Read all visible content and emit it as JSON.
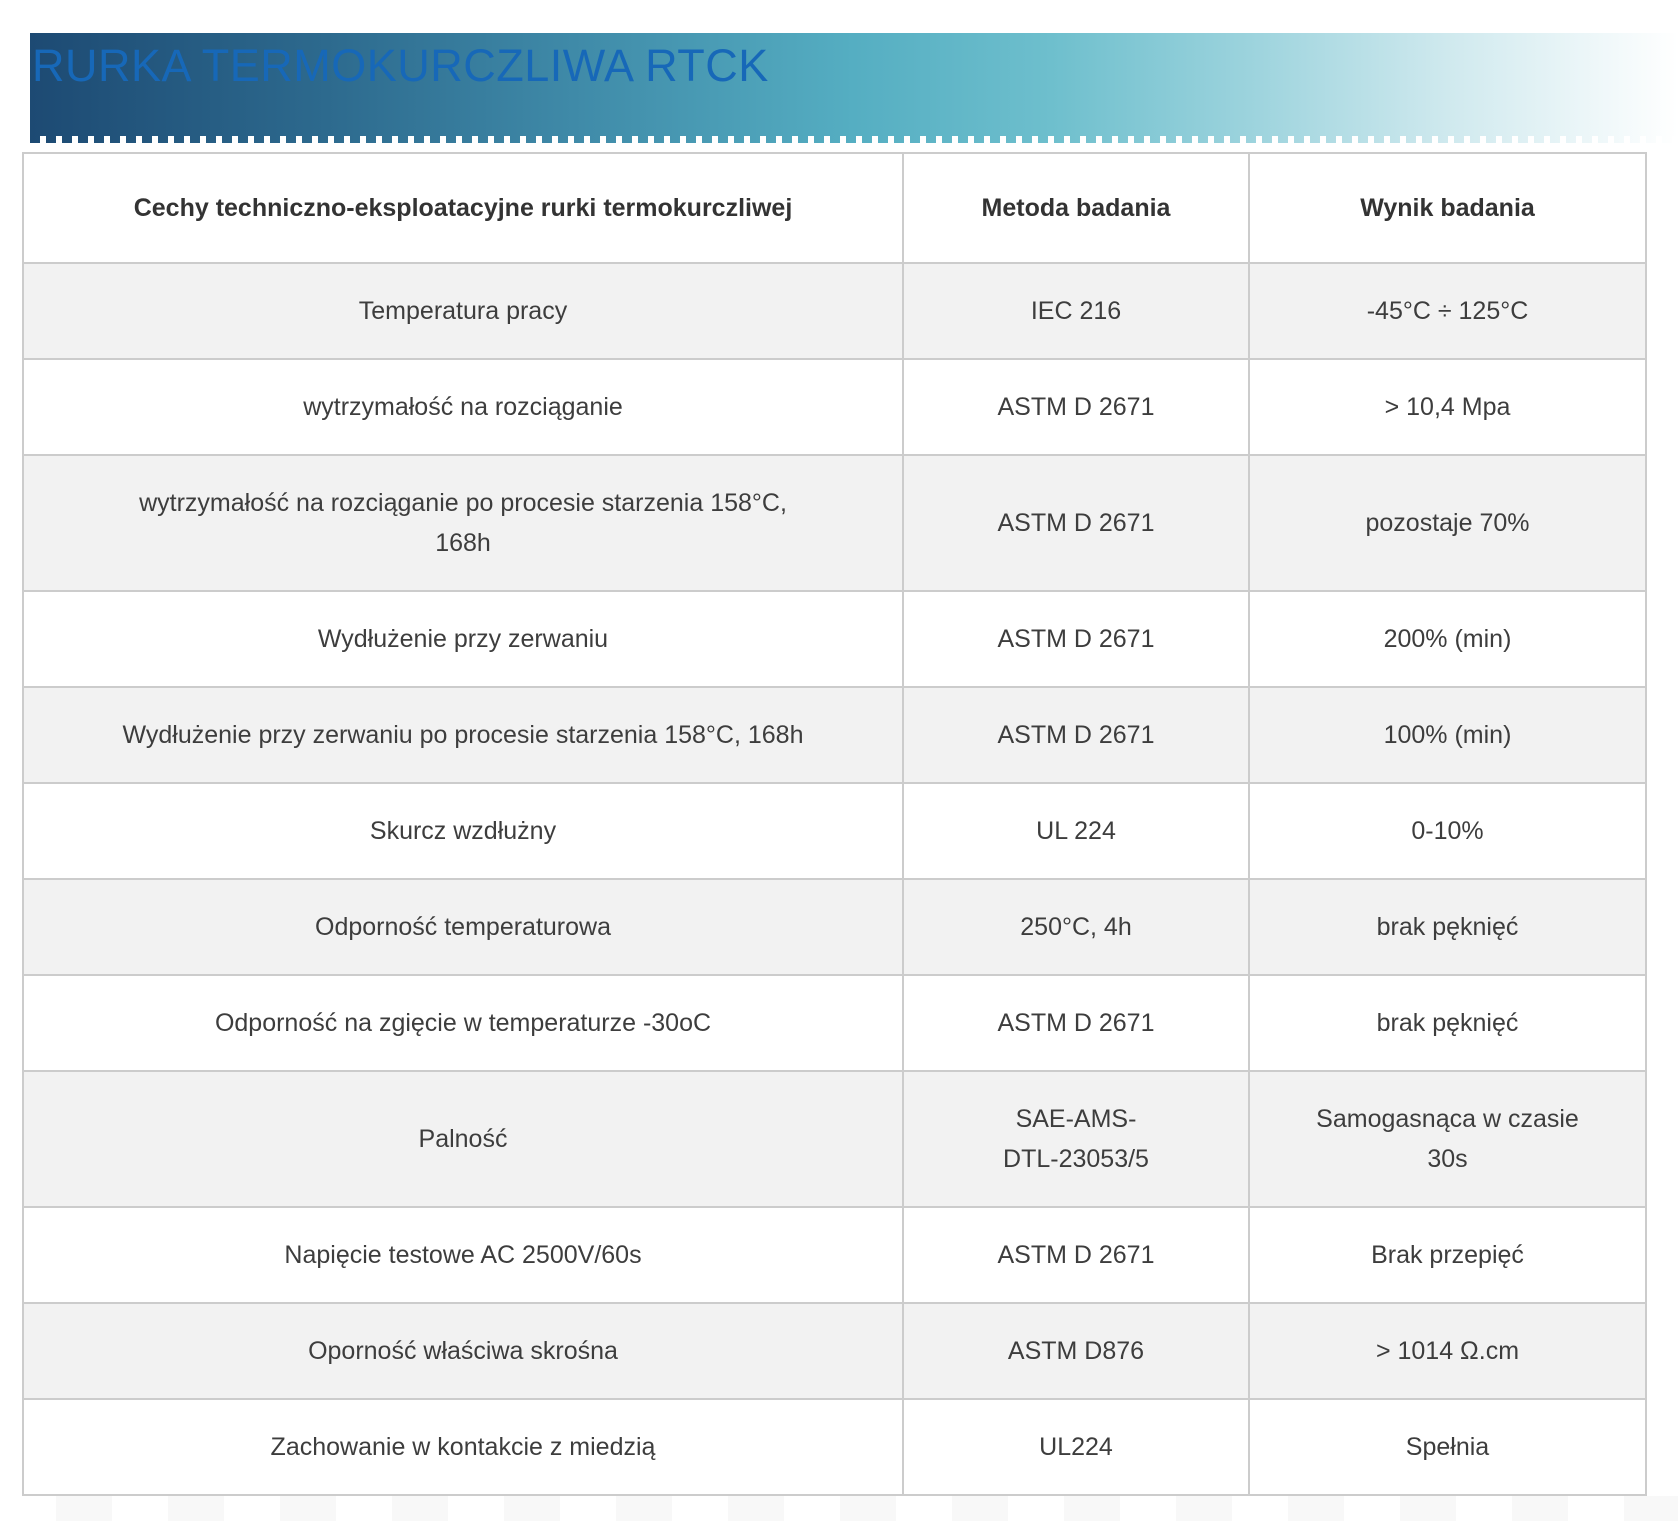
{
  "banner": {
    "title": "RURKA TERMOKURCZLIWA RTCK"
  },
  "colors": {
    "banner-dark": "#1d4a73",
    "banner-teal": "#55aec2",
    "banner-light": "#ffffff",
    "title-color": "#1768b8",
    "stripe-color": "#f2f2f2",
    "border-color": "#cccccc",
    "text-color": "#3d3d3d"
  },
  "table": {
    "columns": [
      "Cechy techniczno-eksploatacyjne rurki termokurczliwej",
      "Metoda badania",
      "Wynik badania"
    ],
    "rows": [
      {
        "feature": "Temperatura pracy",
        "method": "IEC 216",
        "result": "-45°C ÷ 125°C"
      },
      {
        "feature": "wytrzymałość na rozciąganie",
        "method": "ASTM D 2671",
        "result": "> 10,4 Mpa"
      },
      {
        "feature": "wytrzymałość na rozciąganie po procesie starzenia 158°C,\n168h",
        "method": "ASTM D 2671",
        "result": "pozostaje 70%"
      },
      {
        "feature": "Wydłużenie przy zerwaniu",
        "method": "ASTM D 2671",
        "result": "200% (min)"
      },
      {
        "feature": "Wydłużenie przy zerwaniu po procesie starzenia 158°C, 168h",
        "method": "ASTM D 2671",
        "result": "100% (min)"
      },
      {
        "feature": "Skurcz wzdłużny",
        "method": "UL 224",
        "result": "0-10%"
      },
      {
        "feature": "Odporność temperaturowa",
        "method": "250°C, 4h",
        "result": "brak pęknięć"
      },
      {
        "feature": "Odporność na zgięcie w temperaturze -30oC",
        "method": "ASTM D 2671",
        "result": "brak pęknięć"
      },
      {
        "feature": "Palność",
        "method": "SAE-AMS-\nDTL-23053/5",
        "result": "Samogasnąca w czasie\n30s"
      },
      {
        "feature": "Napięcie testowe AC 2500V/60s",
        "method": "ASTM D 2671",
        "result": "Brak przepięć"
      },
      {
        "feature": "Oporność właściwa skrośna",
        "method": "ASTM D876",
        "result": "> 1014 Ω.cm"
      },
      {
        "feature": "Zachowanie w kontakcie z miedzią",
        "method": "UL224",
        "result": "Spełnia"
      }
    ]
  }
}
